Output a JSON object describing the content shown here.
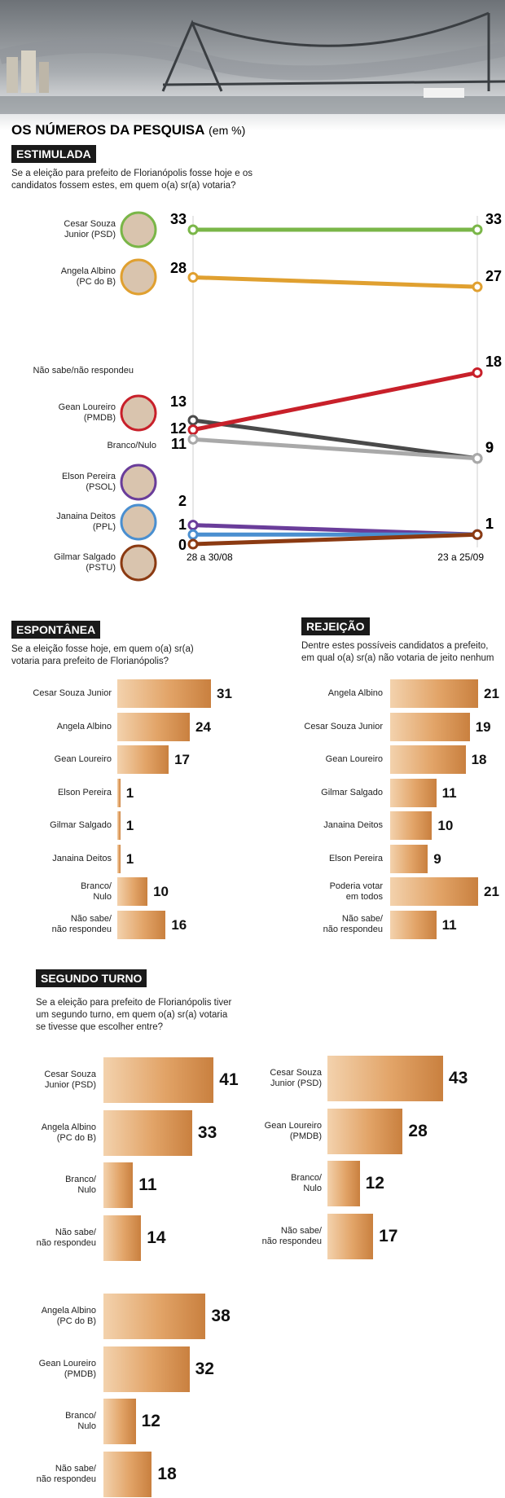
{
  "title": "OS NÚMEROS DA PESQUISA",
  "title_unit": "(em %)",
  "chart_data": [
    {
      "type": "slope",
      "label": "ESTIMULADA",
      "subtitle": "Se a eleição para prefeito de Florianópolis fosse hoje e os candidatos fossem estes, em quem o(a) sr(a) votaria?",
      "x": [
        "28 a 30/08",
        "23 a 25/09"
      ],
      "series": [
        {
          "name": "Cesar Souza\nJunior (PSD)",
          "color": "#7ab648",
          "values": [
            33,
            33
          ]
        },
        {
          "name": "Angela Albino\n(PC do B)",
          "color": "#e0a030",
          "values": [
            28,
            27
          ]
        },
        {
          "name": "Não sabe/não respondeu",
          "color": "#4a4a4a",
          "values": [
            13,
            9
          ]
        },
        {
          "name": "Gean Loureiro\n(PMDB)",
          "color": "#c8202a",
          "values": [
            12,
            18
          ]
        },
        {
          "name": "Branco/Nulo",
          "color": "#a9a9a9",
          "values": [
            11,
            9
          ]
        },
        {
          "name": "Elson Pereira\n(PSOL)",
          "color": "#6a3d9a",
          "values": [
            2,
            1
          ]
        },
        {
          "name": "Janaina Deitos\n(PPL)",
          "color": "#4a8fd0",
          "values": [
            1,
            1
          ]
        },
        {
          "name": "Gilmar Salgado\n(PSTU)",
          "color": "#8b3a12",
          "values": [
            0,
            1
          ]
        }
      ]
    },
    {
      "type": "hbar",
      "label": "ESPONTÂNEA",
      "subtitle": "Se a eleição fosse hoje, em quem o(a) sr(a) votaria para prefeito de Florianópolis?",
      "categories": [
        "Cesar Souza Junior",
        "Angela Albino",
        "Gean Loureiro",
        "Elson Pereira",
        "Gilmar Salgado",
        "Janaina Deitos",
        "Branco/\nNulo",
        "Não sabe/\nnão respondeu"
      ],
      "values": [
        31,
        24,
        17,
        1,
        1,
        1,
        10,
        16
      ]
    },
    {
      "type": "hbar",
      "label": "REJEIÇÃO",
      "subtitle": "Dentre estes possíveis candidatos a prefeito, em qual o(a) sr(a) não votaria de jeito nenhum",
      "categories": [
        "Angela Albino",
        "Cesar Souza Junior",
        "Gean Loureiro",
        "Gilmar Salgado",
        "Janaina Deitos",
        "Elson Pereira",
        "Poderia votar\nem todos",
        "Não sabe/\nnão respondeu"
      ],
      "values": [
        21,
        19,
        18,
        11,
        10,
        9,
        21,
        11
      ]
    },
    {
      "type": "hbar",
      "label": "SEGUNDO TURNO",
      "subtitle": "Se a eleição para prefeito de Florianópolis tiver um segundo turno, em quem o(a) sr(a) votaria se tivesse que escolher entre?",
      "categories": [
        "Cesar Souza\nJunior (PSD)",
        "Angela Albino\n(PC do B)",
        "Branco/\nNulo",
        "Não sabe/\nnão respondeu"
      ],
      "values": [
        41,
        33,
        11,
        14
      ]
    },
    {
      "type": "hbar",
      "categories": [
        "Cesar Souza\nJunior (PSD)",
        "Gean Loureiro\n(PMDB)",
        "Branco/\nNulo",
        "Não sabe/\nnão respondeu"
      ],
      "values": [
        43,
        28,
        12,
        17
      ]
    },
    {
      "type": "hbar",
      "categories": [
        "Angela Albino\n(PC do B)",
        "Gean Loureiro\n(PMDB)",
        "Branco/\nNulo",
        "Não sabe/\nnão respondeu"
      ],
      "values": [
        38,
        32,
        12,
        18
      ]
    }
  ]
}
